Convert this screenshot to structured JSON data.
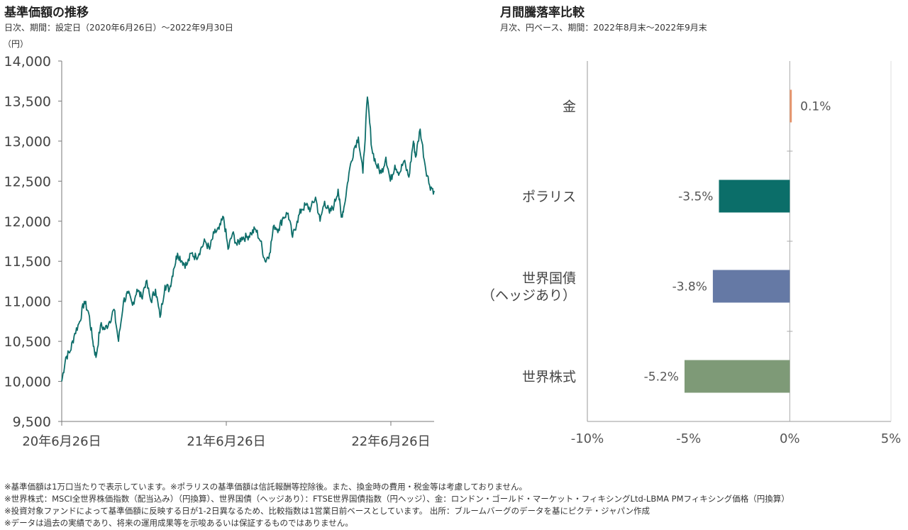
{
  "left_panel": {
    "title": "基準価額の推移",
    "subtitle": "日次、期間：設定日（2020年6月26日）～2022年9月30日",
    "unit_label": "（円）"
  },
  "right_panel": {
    "title": "月間騰落率比較",
    "subtitle": "月次、円ベース、期間：2022年8月末～2022年9月末"
  },
  "footnotes": [
    "※基準価額は1万口当たりで表示しています。※ポラリスの基準価額は信託報酬等控除後。また、換金時の費用・税金等は考慮しておりません。",
    "※世界株式：MSCI全世界株価指数（配当込み）（円換算）、世界国債（ヘッジあり）：FTSE世界国債指数（円ヘッジ）、金：ロンドン・ゴールド・マーケット・フィキシングLtd-LBMA PMフィキシング価格（円換算）",
    "※投資対象ファンドによって基準価額に反映する日が1-2日異なるため、比較指数は1営業日前ベースとしています。 出所：ブルームバーグのデータを基にピクテ・ジャパン作成",
    "※データは過去の実績であり、将来の運用成果等を示唆あるいは保証するものではありません。"
  ],
  "chart_data": [
    {
      "type": "line",
      "title": "基準価額の推移",
      "ylabel": "（円）",
      "ylim": [
        9500,
        14000
      ],
      "yticks": [
        9500,
        10000,
        10500,
        11000,
        11500,
        12000,
        12500,
        13000,
        13500,
        14000
      ],
      "ytick_labels": [
        "9,500",
        "10,000",
        "10,500",
        "11,000",
        "11,500",
        "12,000",
        "12,500",
        "13,000",
        "13,500",
        "14,000"
      ],
      "x_tick_labels": [
        "20年6月26日",
        "21年6月26日",
        "22年6月26日"
      ],
      "xlim": [
        "2020-06-26",
        "2022-09-30"
      ],
      "xticks": [
        "2020-06-26",
        "2021-06-26",
        "2022-06-26"
      ],
      "grid": false,
      "color": "#0e6e6a",
      "series": [
        {
          "x": [
            "2020-06-26",
            "2020-07-05",
            "2020-07-15",
            "2020-07-25",
            "2020-08-05",
            "2020-08-15",
            "2020-08-25",
            "2020-09-03",
            "2020-09-10",
            "2020-09-20",
            "2020-09-30",
            "2020-10-10",
            "2020-10-20",
            "2020-10-30",
            "2020-11-10",
            "2020-11-20",
            "2020-11-30",
            "2020-12-10",
            "2020-12-20",
            "2020-12-30",
            "2021-01-10",
            "2021-01-20",
            "2021-01-30",
            "2021-02-10",
            "2021-02-20",
            "2021-03-01",
            "2021-03-10",
            "2021-03-20",
            "2021-03-30",
            "2021-04-10",
            "2021-04-20",
            "2021-04-30",
            "2021-05-10",
            "2021-05-20",
            "2021-05-30",
            "2021-06-10",
            "2021-06-20",
            "2021-06-30",
            "2021-07-10",
            "2021-07-20",
            "2021-07-30",
            "2021-08-10",
            "2021-08-20",
            "2021-08-30",
            "2021-09-10",
            "2021-09-20",
            "2021-09-30",
            "2021-10-10",
            "2021-10-20",
            "2021-10-30",
            "2021-11-10",
            "2021-11-20",
            "2021-11-30",
            "2021-12-10",
            "2021-12-20",
            "2021-12-30",
            "2022-01-10",
            "2022-01-20",
            "2022-01-30",
            "2022-02-10",
            "2022-02-20",
            "2022-03-01",
            "2022-03-08",
            "2022-03-15",
            "2022-03-25",
            "2022-04-05",
            "2022-04-15",
            "2022-04-25",
            "2022-05-05",
            "2022-05-15",
            "2022-05-25",
            "2022-06-05",
            "2022-06-15",
            "2022-06-25",
            "2022-07-05",
            "2022-07-15",
            "2022-07-25",
            "2022-08-05",
            "2022-08-15",
            "2022-08-20",
            "2022-08-30",
            "2022-09-10",
            "2022-09-20",
            "2022-09-30"
          ],
          "y": [
            10000,
            10300,
            10380,
            10600,
            10750,
            11000,
            10850,
            10500,
            10300,
            10700,
            10650,
            10750,
            10900,
            10500,
            11000,
            11100,
            10950,
            11150,
            11050,
            11250,
            11000,
            11150,
            10800,
            11200,
            11150,
            11400,
            11600,
            11500,
            11450,
            11600,
            11550,
            11650,
            11750,
            11650,
            11850,
            11900,
            12050,
            11650,
            11850,
            11700,
            11800,
            11800,
            11850,
            11900,
            11750,
            11500,
            11600,
            11950,
            11900,
            12050,
            12100,
            11800,
            12000,
            12150,
            12200,
            12150,
            12300,
            12000,
            12250,
            12100,
            12200,
            12400,
            12050,
            12200,
            12600,
            12900,
            13050,
            12600,
            13550,
            12900,
            12700,
            12600,
            12800,
            12500,
            12700,
            12600,
            12750,
            12550,
            13000,
            12800,
            13150,
            12700,
            12450,
            12380
          ]
        }
      ]
    },
    {
      "type": "bar",
      "orientation": "horizontal",
      "title": "月間騰落率比較",
      "categories": [
        "金",
        "ポラリス",
        "世界国債\n（ヘッジあり）",
        "世界株式"
      ],
      "category_lines": [
        [
          "金"
        ],
        [
          "ポラリス"
        ],
        [
          "世界国債",
          "（ヘッジあり）"
        ],
        [
          "世界株式"
        ]
      ],
      "values": [
        0.1,
        -3.5,
        -3.8,
        -5.2
      ],
      "value_labels": [
        "0.1%",
        "-3.5%",
        "-3.8%",
        "-5.2%"
      ],
      "colors": [
        "#e8956c",
        "#0b6e69",
        "#6579a5",
        "#7e9a77"
      ],
      "xlim": [
        -10,
        5
      ],
      "xticks": [
        -10,
        -5,
        0,
        5
      ],
      "xtick_labels": [
        "-10%",
        "-5%",
        "0%",
        "5%"
      ],
      "grid": false
    }
  ]
}
